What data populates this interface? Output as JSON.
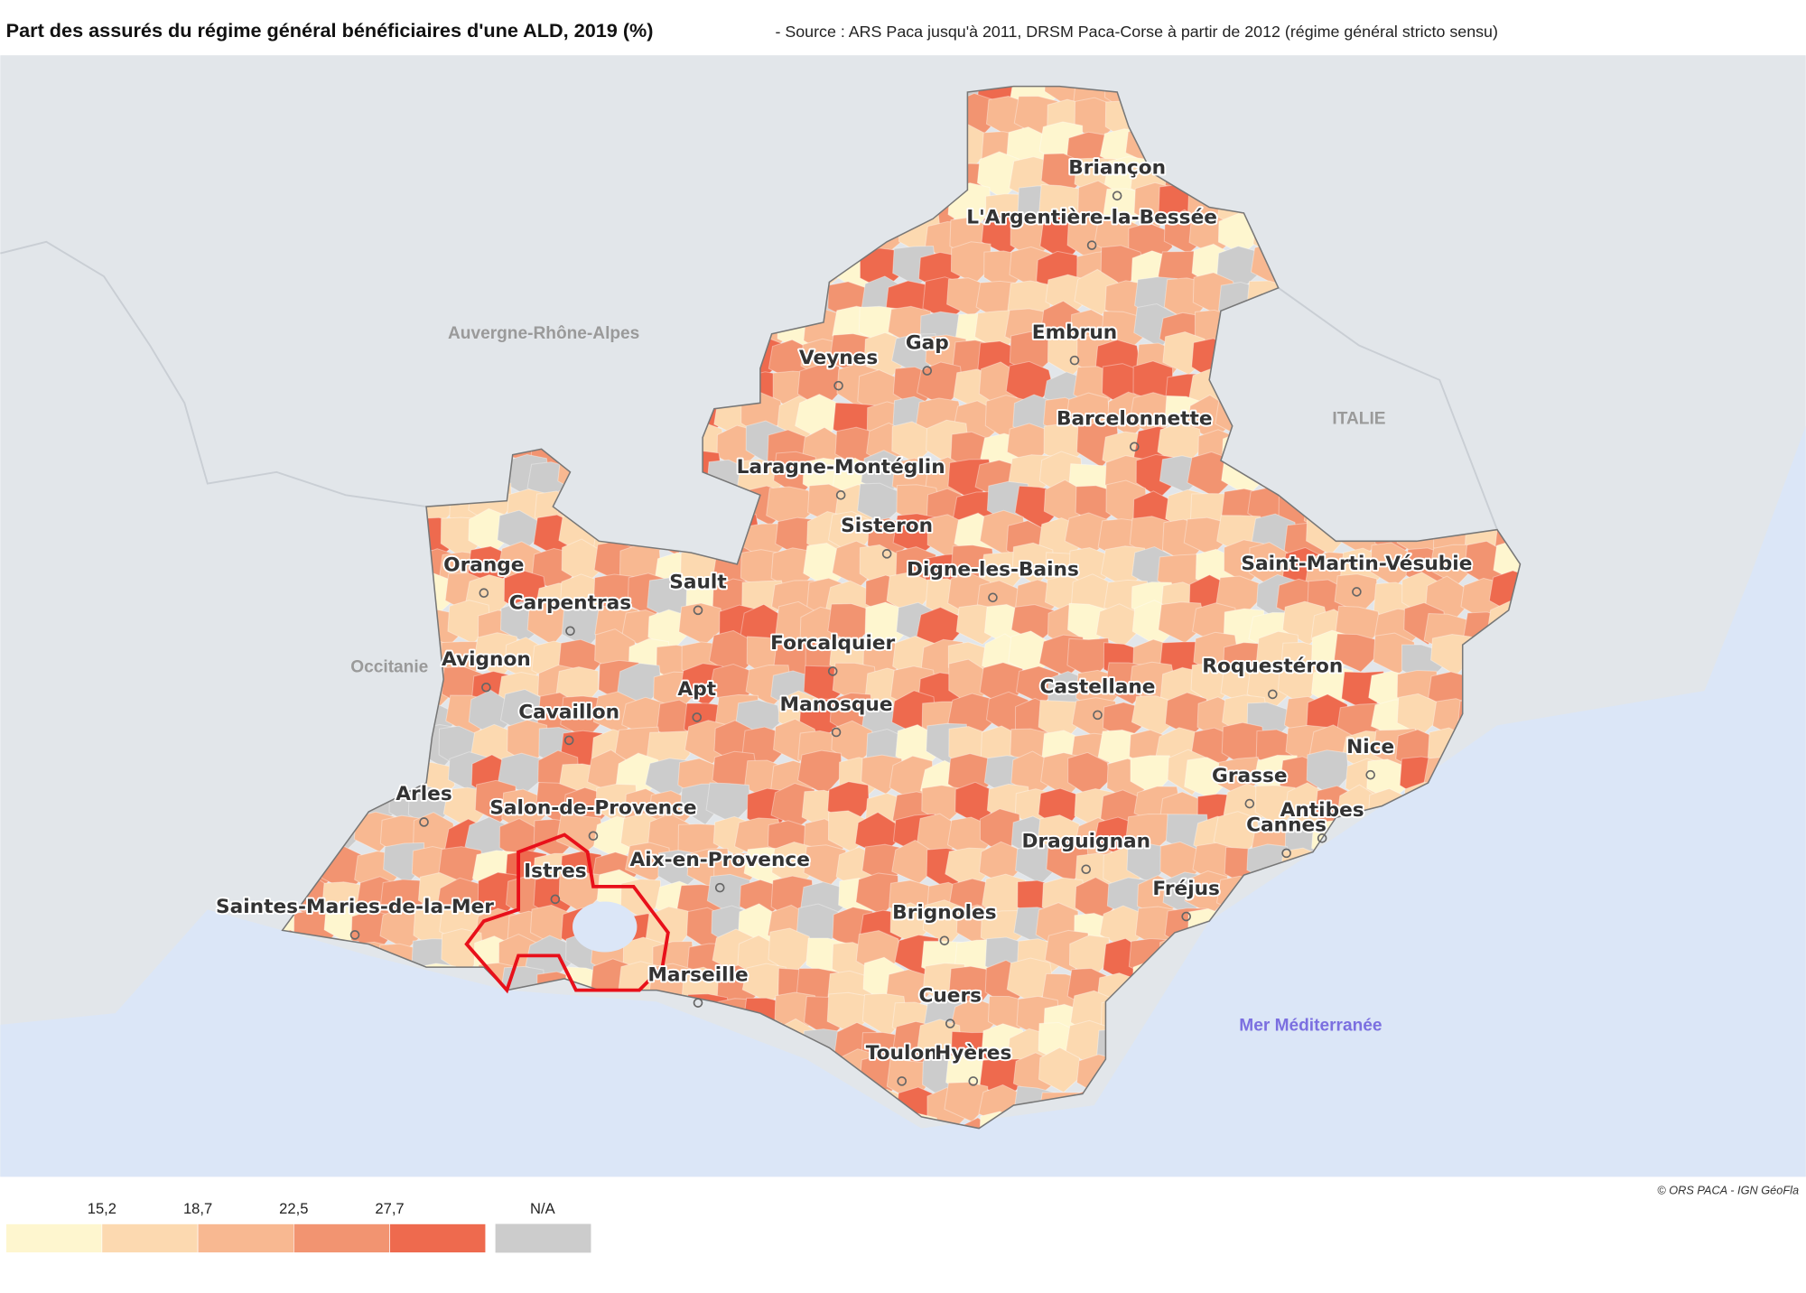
{
  "header": {
    "title": "Part des assurés du régime général bénéficiaires d'une ALD, 2019 (%)",
    "source": "- Source : ARS Paca jusqu'à 2011, DRSM Paca-Corse à partir de 2012 (régime général stricto sensu)"
  },
  "map": {
    "regions": [
      "Auvergne-Rhône-Alpes",
      "ITALIE",
      "Occitanie"
    ],
    "sea": "Mer Méditerranée",
    "cities": [
      "Briançon",
      "L'Argentière-la-Bessée",
      "Gap",
      "Embrun",
      "Veynes",
      "Barcelonnette",
      "Laragne-Montéglin",
      "Sisteron",
      "Digne-les-Bains",
      "Saint-Martin-Vésubie",
      "Orange",
      "Carpentras",
      "Sault",
      "Forcalquier",
      "Avignon",
      "Apt",
      "Manosque",
      "Castellane",
      "Roquestéron",
      "Cavaillon",
      "Nice",
      "Grasse",
      "Antibes",
      "Cannes",
      "Arles",
      "Salon-de-Provence",
      "Draguignan",
      "Aix-en-Provence",
      "Istres",
      "Fréjus",
      "Saintes-Maries-de-la-Mer",
      "Brignoles",
      "Marseille",
      "Cuers",
      "Toulon",
      "Hyères"
    ],
    "credit": "© ORS PACA - IGN GéoFla"
  },
  "legend": {
    "breaks": [
      {
        "value": 15.2,
        "label": "15,2"
      },
      {
        "value": 18.7,
        "label": "18,7"
      },
      {
        "value": 22.5,
        "label": "22,5"
      },
      {
        "value": 27.7,
        "label": "27,7"
      }
    ],
    "colors": [
      "#fef6cf",
      "#fcd9b0",
      "#f8b891",
      "#f29471",
      "#ee6a4e"
    ],
    "na_label": "N/A",
    "na_color": "#cccccc"
  }
}
